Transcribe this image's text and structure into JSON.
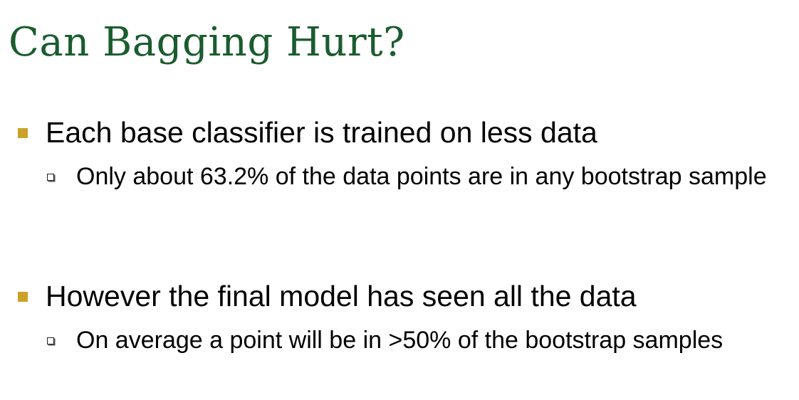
{
  "title": "Can Bagging Hurt?",
  "colors": {
    "title": "#1a5c2e",
    "bullet": "#c9a227",
    "text": "#000000"
  },
  "icons": {
    "level1": "filled-square",
    "level2": "hollow-square"
  },
  "bullets": [
    {
      "text": "Each base classifier is trained on less data",
      "sub": "Only about 63.2% of the data points are in any bootstrap sample"
    },
    {
      "text": "However the final model has seen all the data",
      "sub": "On average a point will be in >50% of the bootstrap samples"
    }
  ]
}
